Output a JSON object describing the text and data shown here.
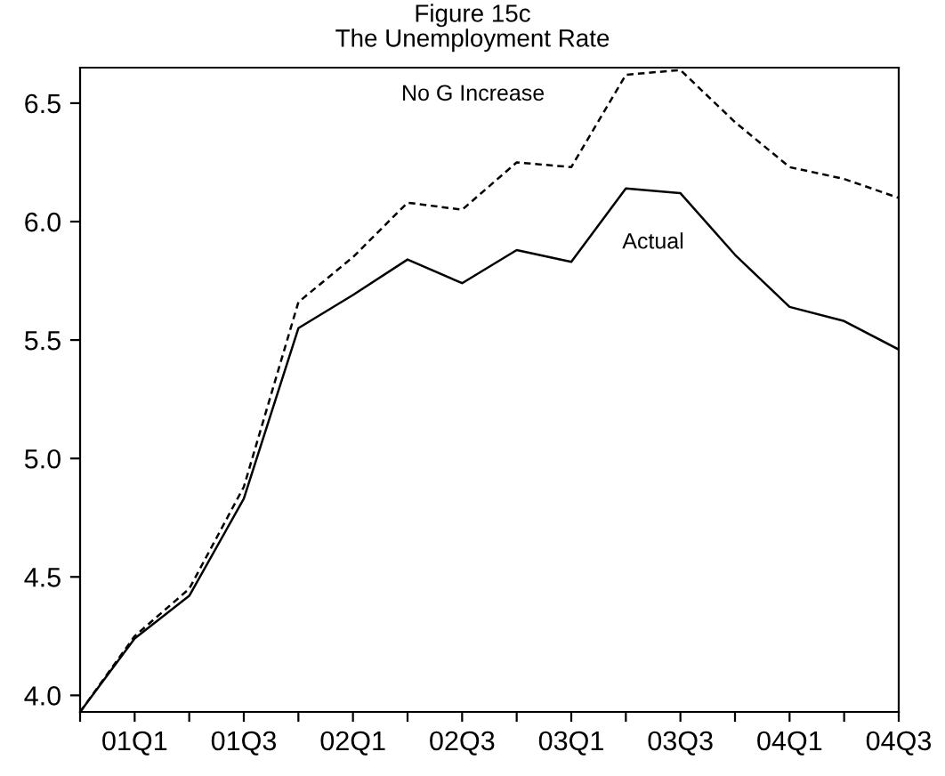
{
  "chart_data": {
    "type": "line",
    "title": "Figure 15c\nThe Unemployment Rate",
    "categories": [
      null,
      "01Q1",
      null,
      "01Q3",
      null,
      "02Q1",
      null,
      "02Q3",
      null,
      "03Q1",
      null,
      "03Q3",
      null,
      "04Q1",
      null,
      "04Q3"
    ],
    "series": [
      {
        "name": "Actual",
        "color": "#000000",
        "line_style": "solid",
        "values": [
          3.93,
          4.24,
          4.42,
          4.83,
          5.55,
          5.69,
          5.84,
          5.74,
          5.88,
          5.83,
          6.14,
          6.12,
          5.86,
          5.64,
          5.58,
          5.46
        ]
      },
      {
        "name": "No G Increase",
        "color": "#000000",
        "line_style": "dashed",
        "values": [
          3.93,
          4.25,
          4.45,
          4.88,
          5.66,
          5.85,
          6.08,
          6.05,
          6.25,
          6.23,
          6.62,
          6.64,
          6.42,
          6.23,
          6.18,
          6.1
        ]
      }
    ],
    "ylim": [
      3.93,
      6.65
    ],
    "yticks": [
      {
        "value": 4.0,
        "label": "4.0"
      },
      4.5,
      {
        "value": 5.0,
        "label": "5.0"
      },
      5.5,
      {
        "value": 6.0,
        "label": "6.0"
      },
      6.5
    ],
    "grid": false,
    "legend": false
  }
}
